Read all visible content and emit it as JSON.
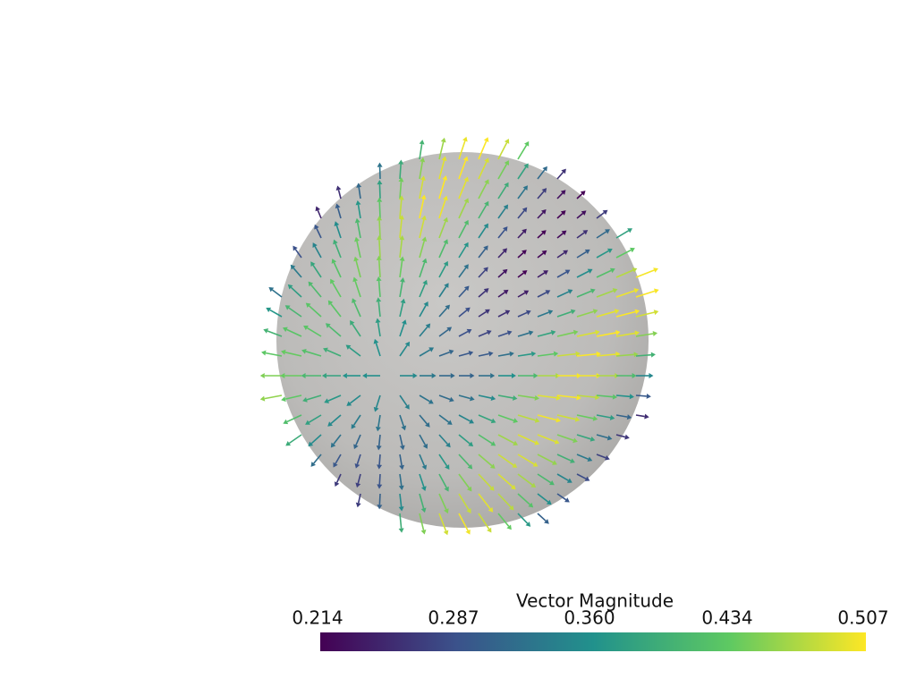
{
  "chart_data": {
    "type": "vector-field",
    "colorbar": {
      "title": "Vector Magnitude",
      "lim": [
        0.214,
        0.507
      ],
      "ticks": [
        0.214,
        0.287,
        {
          "value": 0.36,
          "label": "0.360"
        },
        0.434,
        0.507
      ],
      "colors": [
        "#440154",
        "#3b528b",
        "#21918c",
        "#5ec962",
        "#fde725"
      ]
    }
  }
}
